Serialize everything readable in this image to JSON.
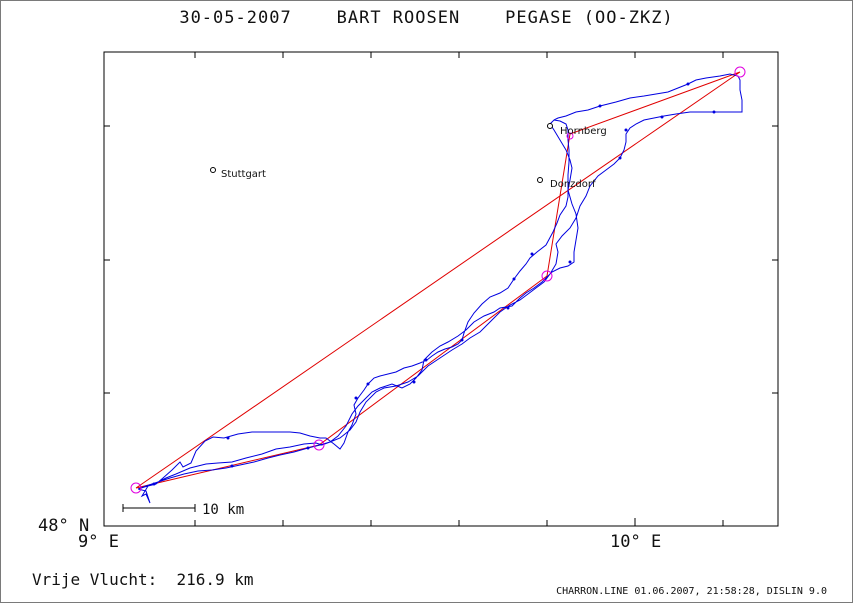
{
  "title": "30-05-2007    BART ROOSEN    PEGASE (OO-ZKZ)",
  "axes": {
    "x_left_label": "9° E",
    "x_right_label": "10° E",
    "y_label": "48° N"
  },
  "cities": [
    {
      "name": "Stuttgart"
    },
    {
      "name": "Hornberg"
    },
    {
      "name": "Donzdorf"
    }
  ],
  "scale_bar": {
    "label": "10 km"
  },
  "distance_label": "Vrije Vlucht:  216.9 km",
  "footer": "CHARRON.LINE 01.06.2007, 21:58:28, DISLIN 9.0",
  "colors": {
    "track": "#0000e0",
    "task_line": "#e00000",
    "turnpoint": "#e000e0",
    "frame": "#000000"
  }
}
